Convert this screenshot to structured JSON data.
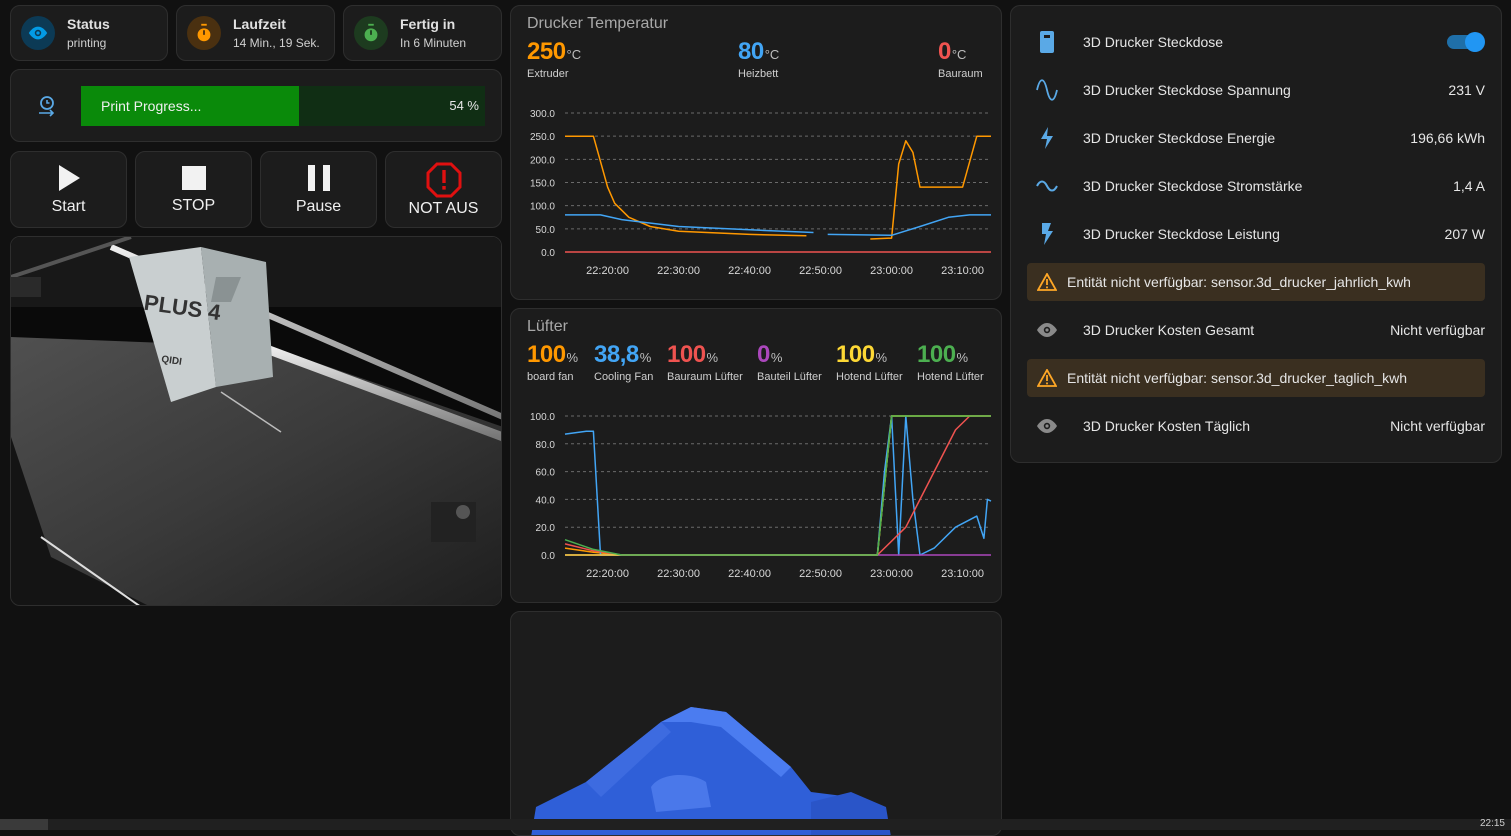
{
  "tiles": {
    "status": {
      "title": "Status",
      "value": "printing",
      "icon": "eye-icon",
      "color": "#039be5"
    },
    "runtime": {
      "title": "Laufzeit",
      "value": "14 Min., 19 Sek.",
      "icon": "timer-icon",
      "color": "#ff9800"
    },
    "done": {
      "title": "Fertig in",
      "value": "In 6 Minuten",
      "icon": "timer-check-icon",
      "color": "#4caf50"
    }
  },
  "progress": {
    "label": "Print Progress...",
    "value_text": "54 %",
    "value": 0.54,
    "icon": "progress-clock-icon"
  },
  "buttons": {
    "start": "Start",
    "stop": "STOP",
    "pause": "Pause",
    "emergency": "NOT AUS"
  },
  "camera": {
    "print_text": "PLUS 4",
    "brand_text": "QIDI"
  },
  "temp_chart": {
    "title": "Drucker Temperatur",
    "stats": [
      {
        "value": "250",
        "unit": "°C",
        "name": "Extruder",
        "color": "#ff9800"
      },
      {
        "value": "80",
        "unit": "°C",
        "name": "Heizbett",
        "color": "#42a5f5"
      },
      {
        "value": "0",
        "unit": "°C",
        "name": "Bauraum",
        "color": "#ef5350"
      }
    ]
  },
  "fan_chart": {
    "title": "Lüfter",
    "stats": [
      {
        "value": "100",
        "unit": "%",
        "name": "board fan",
        "color": "#ff9800"
      },
      {
        "value": "38,8",
        "unit": "%",
        "name": "Cooling Fan",
        "color": "#42a5f5"
      },
      {
        "value": "100",
        "unit": "%",
        "name": "Bauraum Lüfter",
        "color": "#ef5350"
      },
      {
        "value": "0",
        "unit": "%",
        "name": "Bauteil Lüfter",
        "color": "#ab47bc"
      },
      {
        "value": "100",
        "unit": "%",
        "name": "Hotend Lüfter",
        "color": "#fdd835"
      },
      {
        "value": "100",
        "unit": "%",
        "name": "Hotend Lüfter",
        "color": "#4caf50"
      }
    ]
  },
  "chart_data": [
    {
      "type": "line",
      "title": "Drucker Temperatur",
      "x_ticks": [
        "22:20:00",
        "22:30:00",
        "22:40:00",
        "22:50:00",
        "23:00:00",
        "23:10:00"
      ],
      "xlim": [
        "22:14:00",
        "23:14:00"
      ],
      "ylim": [
        0,
        300
      ],
      "y_ticks": [
        "0.0",
        "50.0",
        "100.0",
        "150.0",
        "200.0",
        "250.0",
        "300.0"
      ],
      "grid": true,
      "series": [
        {
          "name": "Extruder",
          "color": "#ff9800",
          "points": [
            [
              "22:14:00",
              250
            ],
            [
              "22:18:00",
              250
            ],
            [
              "22:19:00",
              195
            ],
            [
              "22:20:00",
              140
            ],
            [
              "22:21:00",
              105
            ],
            [
              "22:23:00",
              75
            ],
            [
              "22:26:00",
              55
            ],
            [
              "22:30:00",
              45
            ],
            [
              "22:40:00",
              38
            ],
            [
              "22:48:00",
              35
            ],
            [
              "22:50:00",
              null
            ],
            [
              "22:57:00",
              28
            ],
            [
              "23:00:00",
              30
            ],
            [
              "23:01:00",
              190
            ],
            [
              "23:02:00",
              240
            ],
            [
              "23:03:00",
              215
            ],
            [
              "23:04:00",
              140
            ],
            [
              "23:10:00",
              140
            ],
            [
              "23:11:00",
              195
            ],
            [
              "23:12:00",
              250
            ],
            [
              "23:14:00",
              250
            ]
          ]
        },
        {
          "name": "Heizbett",
          "color": "#42a5f5",
          "points": [
            [
              "22:14:00",
              80
            ],
            [
              "22:19:00",
              80
            ],
            [
              "22:22:00",
              70
            ],
            [
              "22:30:00",
              55
            ],
            [
              "22:40:00",
              48
            ],
            [
              "22:49:00",
              42
            ],
            [
              "22:50:00",
              null
            ],
            [
              "22:51:00",
              38
            ],
            [
              "23:00:00",
              36
            ],
            [
              "23:04:00",
              55
            ],
            [
              "23:08:00",
              75
            ],
            [
              "23:11:00",
              80
            ],
            [
              "23:14:00",
              80
            ]
          ]
        },
        {
          "name": "Bauraum",
          "color": "#ef5350",
          "points": [
            [
              "22:14:00",
              0
            ],
            [
              "23:14:00",
              0
            ]
          ]
        }
      ]
    },
    {
      "type": "line",
      "title": "Lüfter",
      "x_ticks": [
        "22:20:00",
        "22:30:00",
        "22:40:00",
        "22:50:00",
        "23:00:00",
        "23:10:00"
      ],
      "xlim": [
        "22:14:00",
        "23:14:00"
      ],
      "ylim": [
        0,
        100
      ],
      "y_ticks": [
        "0.0",
        "20.0",
        "40.0",
        "60.0",
        "80.0",
        "100.0"
      ],
      "grid": true,
      "series": [
        {
          "name": "board fan",
          "color": "#ff9800",
          "points": [
            [
              "22:14:00",
              5
            ],
            [
              "22:18:00",
              2
            ],
            [
              "22:22:00",
              0
            ],
            [
              "22:58:00",
              0
            ],
            [
              "23:00:00",
              100
            ],
            [
              "23:14:00",
              100
            ]
          ]
        },
        {
          "name": "Cooling Fan",
          "color": "#42a5f5",
          "points": [
            [
              "22:14:00",
              87
            ],
            [
              "22:17:00",
              89
            ],
            [
              "22:18:00",
              89
            ],
            [
              "22:19:00",
              0
            ],
            [
              "22:58:00",
              0
            ],
            [
              "22:59:00",
              60
            ],
            [
              "23:00:00",
              100
            ],
            [
              "23:01:00",
              0
            ],
            [
              "23:02:00",
              100
            ],
            [
              "23:03:00",
              40
            ],
            [
              "23:04:00",
              0
            ],
            [
              "23:06:00",
              5
            ],
            [
              "23:09:00",
              20
            ],
            [
              "23:12:00",
              28
            ],
            [
              "23:13:00",
              12
            ],
            [
              "23:13:30",
              40
            ],
            [
              "23:14:00",
              38.8
            ]
          ]
        },
        {
          "name": "Bauraum Lüfter",
          "color": "#ef5350",
          "points": [
            [
              "22:14:00",
              8
            ],
            [
              "22:18:00",
              3
            ],
            [
              "22:22:00",
              0
            ],
            [
              "22:58:00",
              0
            ],
            [
              "23:02:00",
              20
            ],
            [
              "23:06:00",
              60
            ],
            [
              "23:09:00",
              90
            ],
            [
              "23:11:00",
              100
            ],
            [
              "23:14:00",
              100
            ]
          ]
        },
        {
          "name": "Bauteil Lüfter",
          "color": "#ab47bc",
          "points": [
            [
              "22:14:00",
              0
            ],
            [
              "23:14:00",
              0
            ]
          ]
        },
        {
          "name": "Hotend Lüfter",
          "color": "#fdd835",
          "points": [
            [
              "22:14:00",
              0
            ],
            [
              "22:58:00",
              0
            ],
            [
              "23:00:00",
              100
            ],
            [
              "23:14:00",
              100
            ]
          ]
        },
        {
          "name": "Hotend Lüfter",
          "color": "#4caf50",
          "points": [
            [
              "22:14:00",
              11
            ],
            [
              "22:18:00",
              4
            ],
            [
              "22:22:00",
              0
            ],
            [
              "22:58:00",
              0
            ],
            [
              "23:00:00",
              100
            ],
            [
              "23:14:00",
              100
            ]
          ]
        }
      ]
    }
  ],
  "entities": [
    {
      "name": "3D Drucker Steckdose",
      "value": "",
      "icon": "power-socket-icon",
      "toggle": true
    },
    {
      "name": "3D Drucker Steckdose Spannung",
      "value": "231 V",
      "icon": "sine-wave-icon"
    },
    {
      "name": "3D Drucker Steckdose Energie",
      "value": "196,66 kWh",
      "icon": "lightning-bolt-icon"
    },
    {
      "name": "3D Drucker Steckdose Stromstärke",
      "value": "1,4 A",
      "icon": "current-ac-icon"
    },
    {
      "name": "3D Drucker Steckdose Leistung",
      "value": "207 W",
      "icon": "flash-icon"
    }
  ],
  "warnings": [
    "Entität nicht verfügbar: sensor.3d_drucker_jahrlich_kwh",
    "Entität nicht verfügbar: sensor.3d_drucker_taglich_kwh"
  ],
  "costs": [
    {
      "name": "3D Drucker Kosten Gesamt",
      "value": "Nicht verfügbar",
      "icon": "eye-icon"
    },
    {
      "name": "3D Drucker Kosten Täglich",
      "value": "Nicht verfügbar",
      "icon": "eye-icon"
    }
  ],
  "taskbar": {
    "clock": "22:15"
  }
}
